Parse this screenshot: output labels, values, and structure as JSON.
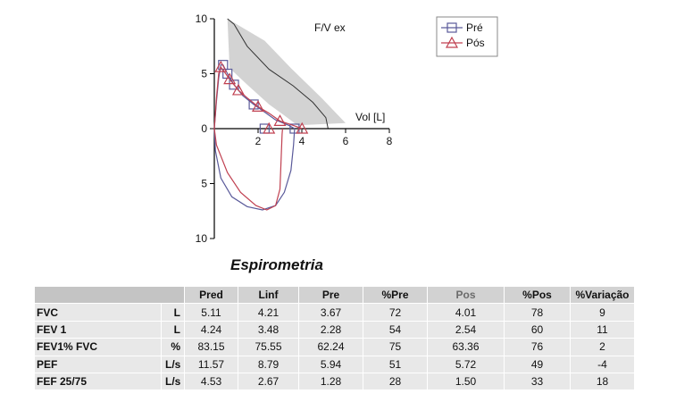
{
  "chart_data": {
    "type": "line",
    "title": "F/V ex",
    "xlabel": "Vol [L]",
    "ylabel": "",
    "xlim": [
      0,
      8
    ],
    "ylim": [
      -10,
      10
    ],
    "x_ticks": [
      0,
      2,
      4,
      6,
      8
    ],
    "y_ticks": [
      {
        "value": 10,
        "label": "10"
      },
      {
        "value": 5,
        "label": "5"
      },
      {
        "value": 0,
        "label": "0"
      },
      {
        "value": -5,
        "label": "5"
      },
      {
        "value": -10,
        "label": "10"
      }
    ],
    "legend": {
      "position": "top-right",
      "entries": [
        "Pré",
        "Pós"
      ]
    },
    "predicted": {
      "band_upper": [
        [
          0.6,
          10
        ],
        [
          2.3,
          8
        ],
        [
          3.5,
          5.5
        ],
        [
          4.9,
          2.8
        ],
        [
          6.0,
          0.5
        ]
      ],
      "band_lower": [
        [
          0.7,
          5.5
        ],
        [
          1.5,
          4
        ],
        [
          2.5,
          2.2
        ],
        [
          3.2,
          1.2
        ],
        [
          3.8,
          0.3
        ]
      ],
      "center": [
        [
          0.6,
          10.0
        ],
        [
          0.9,
          9.5
        ],
        [
          1.5,
          7.5
        ],
        [
          2.5,
          5.4
        ],
        [
          3.6,
          3.9
        ],
        [
          4.5,
          2.4
        ],
        [
          5.1,
          1.0
        ],
        [
          5.2,
          0
        ]
      ]
    },
    "series": [
      {
        "name": "Pré",
        "color": "#5a5a9a",
        "marker": "square",
        "expiratory": [
          [
            0,
            0
          ],
          [
            0.1,
            2.5
          ],
          [
            0.2,
            4.6
          ],
          [
            0.3,
            5.8
          ],
          [
            0.4,
            5.8
          ],
          [
            0.6,
            5.0
          ],
          [
            0.9,
            4.0
          ],
          [
            1.3,
            3.0
          ],
          [
            1.8,
            2.2
          ],
          [
            2.3,
            1.5
          ],
          [
            2.8,
            0.8
          ],
          [
            3.4,
            0.3
          ],
          [
            3.67,
            0
          ]
        ],
        "markers": [
          [
            0.4,
            5.8
          ],
          [
            0.6,
            5.0
          ],
          [
            0.9,
            4.0
          ],
          [
            1.8,
            2.2
          ],
          [
            2.3,
            0
          ],
          [
            3.67,
            0
          ]
        ],
        "inspiratory": [
          [
            0,
            0
          ],
          [
            0.05,
            -2
          ],
          [
            0.3,
            -4.5
          ],
          [
            0.8,
            -6.2
          ],
          [
            1.5,
            -7.1
          ],
          [
            2.2,
            -7.4
          ],
          [
            2.8,
            -7.0
          ],
          [
            3.2,
            -5.8
          ],
          [
            3.5,
            -3.8
          ],
          [
            3.62,
            -1.5
          ],
          [
            3.67,
            0
          ]
        ]
      },
      {
        "name": "Pós",
        "color": "#c04050",
        "marker": "triangle",
        "expiratory": [
          [
            0,
            0
          ],
          [
            0.1,
            2.8
          ],
          [
            0.2,
            5.0
          ],
          [
            0.3,
            5.6
          ],
          [
            0.45,
            5.2
          ],
          [
            0.7,
            4.5
          ],
          [
            1.1,
            3.5
          ],
          [
            1.5,
            2.8
          ],
          [
            2.0,
            2.0
          ],
          [
            2.5,
            1.4
          ],
          [
            3.0,
            0.7
          ],
          [
            3.6,
            0.3
          ],
          [
            4.01,
            0
          ]
        ],
        "markers": [
          [
            0.3,
            5.6
          ],
          [
            0.7,
            4.5
          ],
          [
            1.1,
            3.5
          ],
          [
            2.0,
            2.0
          ],
          [
            3.0,
            0.7
          ],
          [
            2.5,
            0
          ],
          [
            4.01,
            0
          ]
        ],
        "inspiratory": [
          [
            0,
            0
          ],
          [
            0.1,
            -1.5
          ],
          [
            0.6,
            -4.0
          ],
          [
            1.2,
            -5.8
          ],
          [
            1.9,
            -7.0
          ],
          [
            2.4,
            -7.4
          ],
          [
            2.8,
            -7.0
          ],
          [
            3.0,
            -5.5
          ],
          [
            3.05,
            -3
          ],
          [
            3.1,
            -0.5
          ],
          [
            3.12,
            0
          ]
        ]
      }
    ]
  },
  "report": {
    "title": "Espirometria",
    "headers": [
      "Pred",
      "Linf",
      "Pre",
      "%Pre",
      "Pos",
      "%Pos",
      "%Variação"
    ],
    "rows": [
      {
        "param": "FVC",
        "unit": "L",
        "values": [
          "5.11",
          "4.21",
          "3.67",
          "72",
          "4.01",
          "78",
          "9"
        ]
      },
      {
        "param": "FEV 1",
        "unit": "L",
        "values": [
          "4.24",
          "3.48",
          "2.28",
          "54",
          "2.54",
          "60",
          "11"
        ]
      },
      {
        "param": "FEV1% FVC",
        "unit": "%",
        "values": [
          "83.15",
          "75.55",
          "62.24",
          "75",
          "63.36",
          "76",
          "2"
        ]
      },
      {
        "param": "PEF",
        "unit": "L/s",
        "values": [
          "11.57",
          "8.79",
          "5.94",
          "51",
          "5.72",
          "49",
          "-4"
        ]
      },
      {
        "param": "FEF 25/75",
        "unit": "L/s",
        "values": [
          "4.53",
          "2.67",
          "1.28",
          "28",
          "1.50",
          "33",
          "18"
        ]
      }
    ]
  }
}
